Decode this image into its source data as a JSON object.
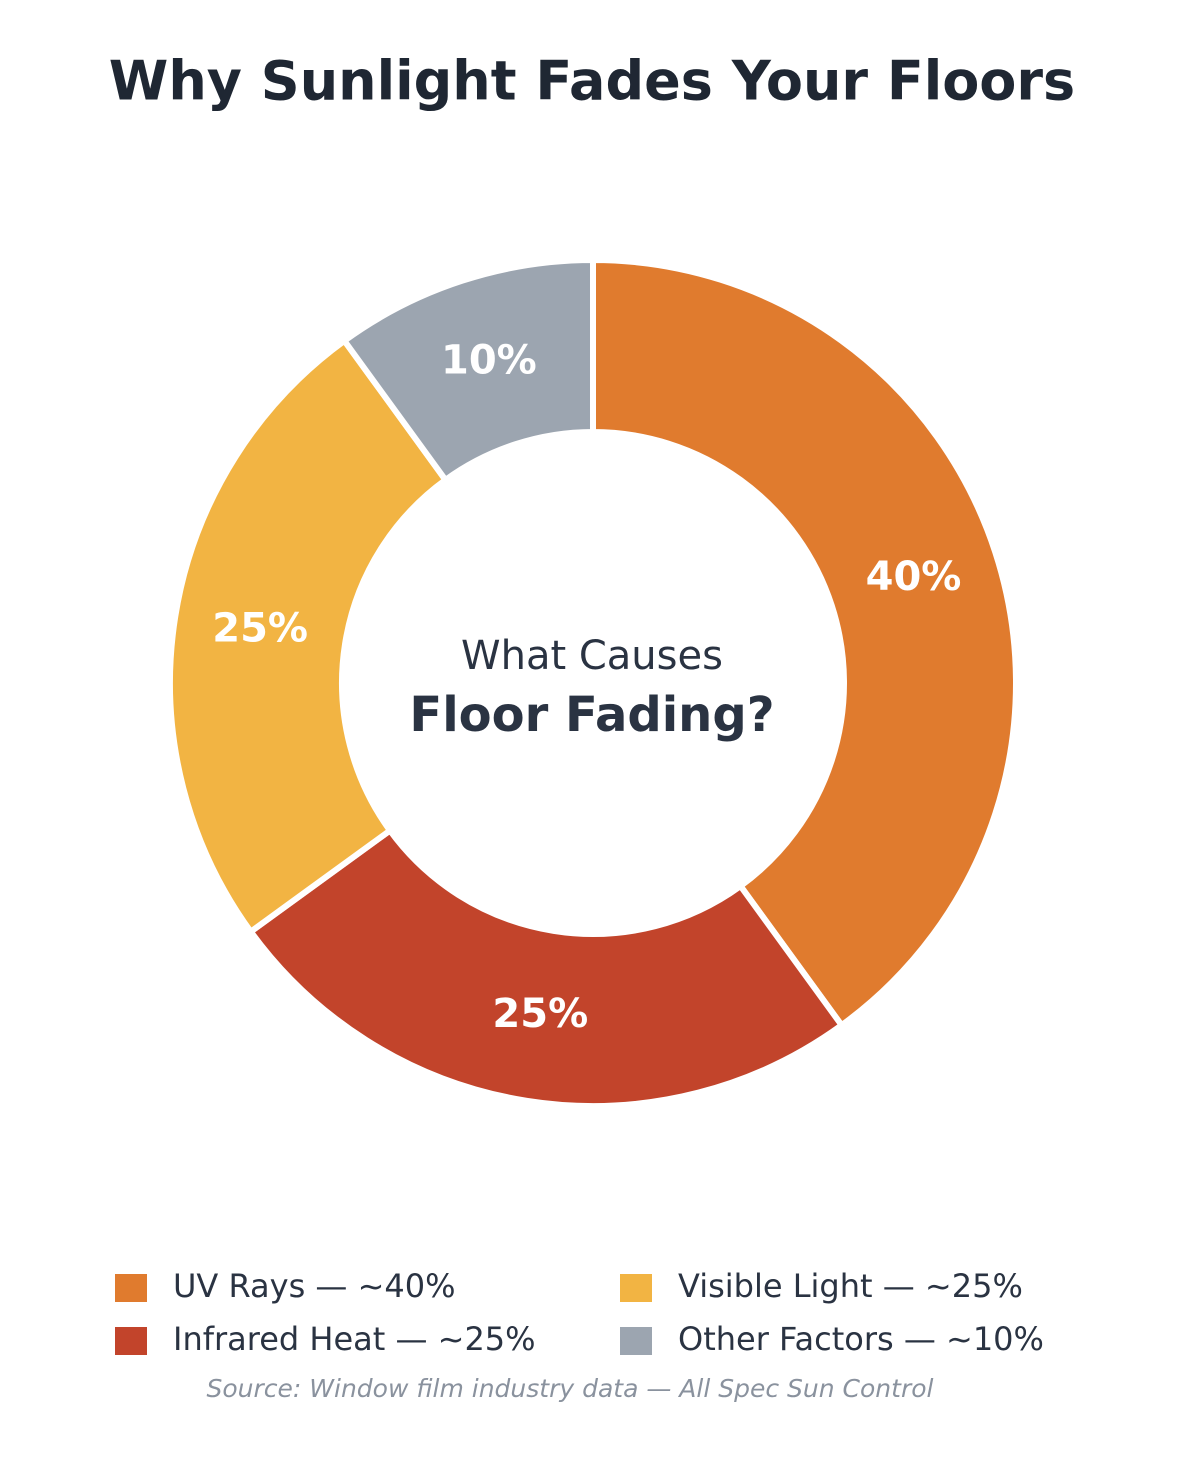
{
  "chart_data": {
    "type": "donut",
    "title": "Why Sunlight Fades Your Floors",
    "center_text": [
      "What Causes",
      "Floor Fading?"
    ],
    "categories": [
      "UV Rays — ~40%",
      "Infrared Heat — ~25%",
      "Visible Light — ~25%",
      "Other Factors — ~10%"
    ],
    "values": [
      40,
      25,
      25,
      10
    ],
    "value_labels": [
      "40%",
      "25%",
      "25%",
      "10%"
    ],
    "colors": [
      "#e07b2e",
      "#c2442b",
      "#f2b443",
      "#9ca5b0"
    ],
    "source": "Source: Window film industry data — All Spec Sun Control"
  }
}
